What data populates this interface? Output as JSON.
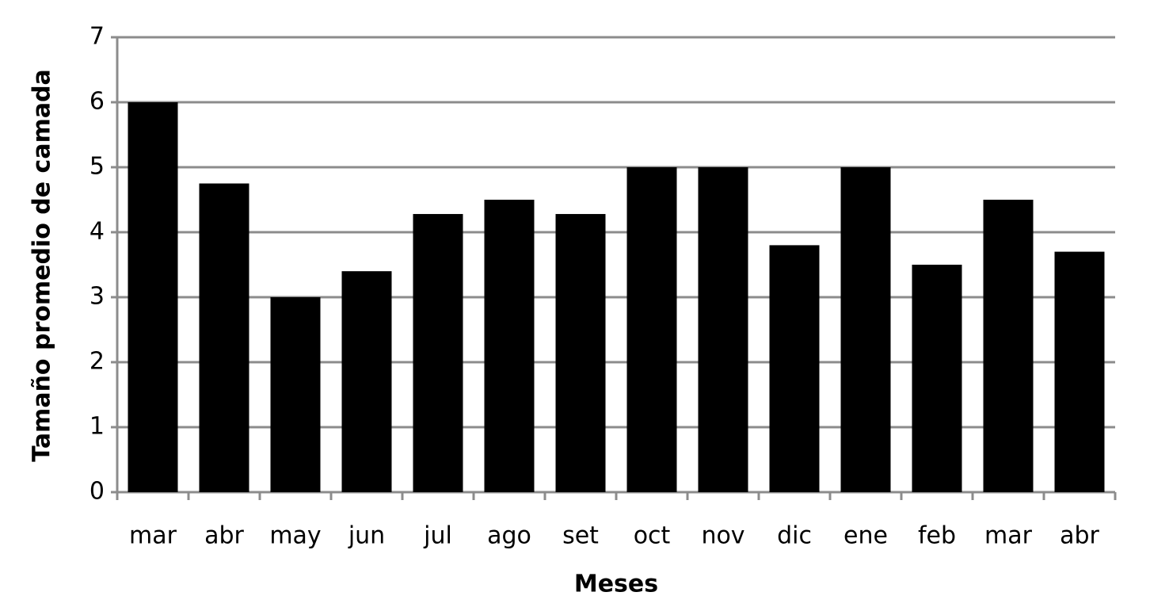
{
  "chart_data": {
    "type": "bar",
    "x_label": "Meses",
    "y_label": "Tamaño promedio de camada",
    "categories": [
      "mar",
      "abr",
      "may",
      "jun",
      "jul",
      "ago",
      "set",
      "oct",
      "nov",
      "dic",
      "ene",
      "feb",
      "mar",
      "abr"
    ],
    "values": [
      6,
      4.75,
      3,
      3.4,
      4.28,
      4.5,
      4.28,
      5,
      5,
      3.8,
      5,
      3.5,
      4.5,
      3.7
    ],
    "color": "#000000",
    "ylim": [
      0,
      7
    ],
    "yticks": [
      0,
      1,
      2,
      3,
      4,
      5,
      6,
      7
    ],
    "grid": true
  }
}
